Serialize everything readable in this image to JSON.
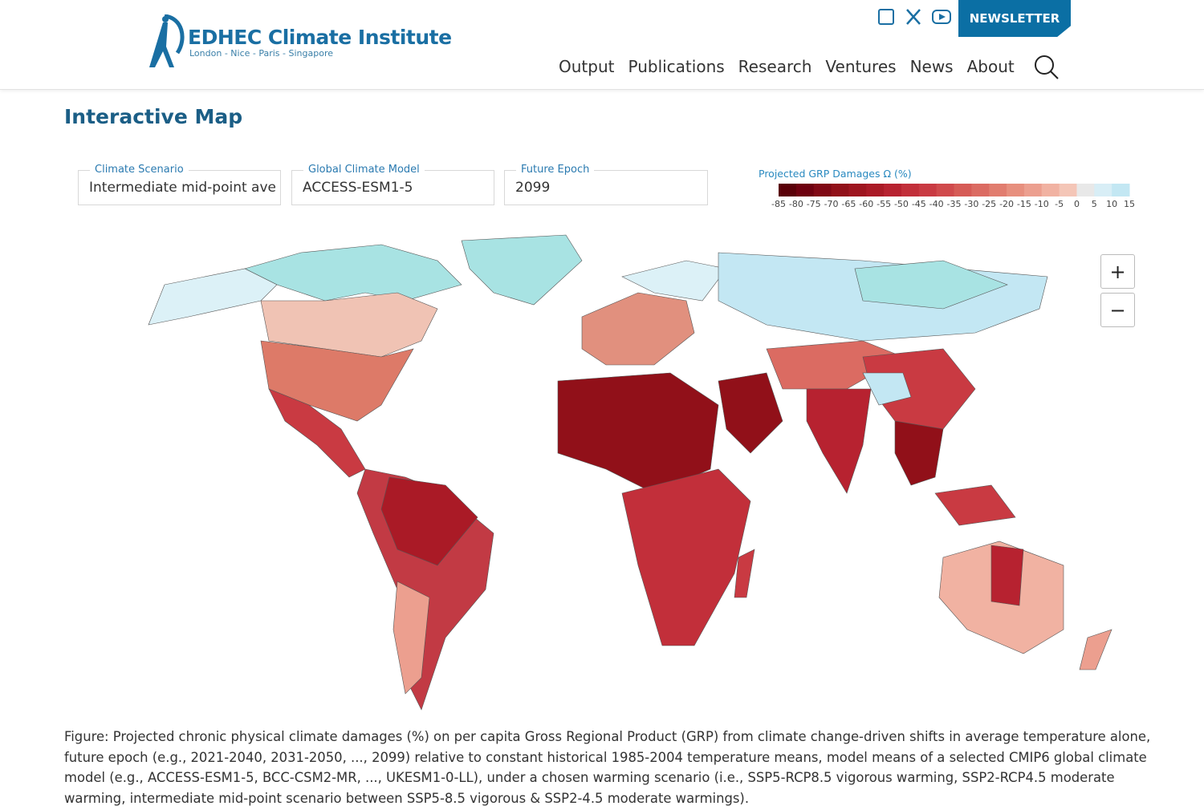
{
  "header": {
    "logo_title": "EDHEC Climate Institute",
    "logo_subtitle": "London - Nice - Paris - Singapore",
    "nav": [
      "Output",
      "Publications",
      "Research",
      "Ventures",
      "News",
      "About"
    ],
    "newsletter": "NEWSLETTER"
  },
  "page_title": "Interactive Map",
  "selectors": [
    {
      "label": "Climate Scenario",
      "value": "Intermediate mid-point average"
    },
    {
      "label": "Global Climate Model",
      "value": "ACCESS-ESM1-5"
    },
    {
      "label": "Future Epoch",
      "value": "2099"
    }
  ],
  "legend": {
    "title": "Projected GRP Damages Ω (%)",
    "ticks": [
      -85,
      -80,
      -75,
      -70,
      -65,
      -60,
      -55,
      -50,
      -45,
      -40,
      -35,
      -30,
      -25,
      -20,
      -15,
      -10,
      -5,
      0,
      5,
      10,
      15
    ],
    "colors": [
      "#5a0008",
      "#6e000f",
      "#800815",
      "#911019",
      "#9e151f",
      "#aa1a26",
      "#b72230",
      "#c22f3a",
      "#c93a42",
      "#d04a4c",
      "#d65b56",
      "#db6b62",
      "#e17d6f",
      "#e78f7e",
      "#ec9f8f",
      "#f1b2a2",
      "#f4c6b7",
      "#e8e8e8",
      "#d8eef6",
      "#c3e7f3"
    ]
  },
  "zoom": {
    "in": "+",
    "out": "−"
  },
  "caption": "Figure: Projected chronic physical climate damages (%) on per capita Gross Regional Product (GRP) from climate change-driven shifts in average temperature alone, future epoch (e.g., 2021-2040, 2031-2050, ..., 2099) relative to constant historical 1985-2004 temperature means, model means of a selected CMIP6 global climate model (e.g., ACCESS-ESM1-5, BCC-CSM2-MR, ..., UKESM1-0-LL), under a chosen warming scenario (i.e., SSP5-RCP8.5 vigorous warming, SSP2-RCP4.5 moderate warming, intermediate mid-point scenario between SSP5-8.5 vigorous & SSP2-4.5 moderate warmings)."
}
